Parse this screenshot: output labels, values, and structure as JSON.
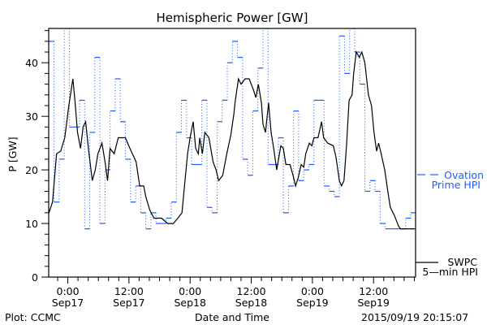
{
  "chart_data": {
    "type": "line",
    "title": "Hemispheric Power [GW]",
    "xlabel": "Date and Time",
    "ylabel": "P [GW]",
    "x_units": "hours since 2015-09-17 0:00",
    "xlim": [
      -3.75,
      68.25
    ],
    "ylim": [
      0,
      46.4
    ],
    "y_ticks": [
      0,
      10,
      20,
      30,
      40
    ],
    "x_ticks": [
      {
        "hour": 0,
        "time": "0:00",
        "date": "Sep17"
      },
      {
        "hour": 12,
        "time": "12:00",
        "date": "Sep17"
      },
      {
        "hour": 24,
        "time": "0:00",
        "date": "Sep18"
      },
      {
        "hour": 36,
        "time": "12:00",
        "date": "Sep18"
      },
      {
        "hour": 48,
        "time": "0:00",
        "date": "Sep19"
      },
      {
        "hour": 60,
        "time": "12:00",
        "date": "Sep19"
      }
    ],
    "colors": {
      "ovation": "#1a5cff",
      "swpc": "#000000"
    },
    "series": [
      {
        "name": "Ovation Prime HPI",
        "legend": [
          "Ovation",
          "Prime HPI"
        ],
        "style": "step",
        "start_hour": -3.7,
        "step_hours": 1,
        "values": [
          44,
          14,
          22,
          47,
          28,
          28,
          33,
          9,
          27,
          41,
          10,
          20,
          31,
          37,
          29,
          22,
          14,
          17,
          12,
          9,
          12,
          10,
          10,
          11,
          14,
          27,
          33,
          26,
          21,
          21,
          33,
          13,
          12,
          29,
          33,
          40,
          44,
          41,
          22,
          19,
          31,
          39,
          47,
          21,
          21,
          26,
          12,
          17,
          31,
          18,
          20,
          21,
          33,
          33,
          17,
          16,
          15,
          45,
          38,
          47,
          42,
          36,
          16,
          18,
          16,
          10,
          9,
          9,
          9,
          9,
          11,
          12
        ]
      },
      {
        "name": "SWPC 5-min HPI",
        "legend": [
          "SWPC",
          "5—min HPI"
        ],
        "style": "line",
        "points": [
          [
            -3.7,
            12
          ],
          [
            -3.0,
            14
          ],
          [
            -2.2,
            23
          ],
          [
            -1.4,
            23.5
          ],
          [
            -0.6,
            26
          ],
          [
            0.2,
            32
          ],
          [
            1.0,
            37
          ],
          [
            1.4,
            33
          ],
          [
            1.9,
            27
          ],
          [
            2.5,
            24
          ],
          [
            3.0,
            28
          ],
          [
            3.5,
            29
          ],
          [
            4.1,
            23.5
          ],
          [
            4.8,
            18
          ],
          [
            5.4,
            20
          ],
          [
            5.9,
            23
          ],
          [
            6.7,
            25
          ],
          [
            7.3,
            21.5
          ],
          [
            7.8,
            18
          ],
          [
            8.3,
            24
          ],
          [
            9.1,
            23
          ],
          [
            9.9,
            26
          ],
          [
            11.3,
            26
          ],
          [
            12.2,
            24
          ],
          [
            13.4,
            21.5
          ],
          [
            14.1,
            17
          ],
          [
            14.9,
            17
          ],
          [
            15.3,
            15
          ],
          [
            16.1,
            12.5
          ],
          [
            16.9,
            11
          ],
          [
            18.4,
            11
          ],
          [
            19.6,
            10
          ],
          [
            20.7,
            10
          ],
          [
            21.6,
            11
          ],
          [
            22.4,
            12
          ],
          [
            22.9,
            17
          ],
          [
            23.5,
            23
          ],
          [
            24.0,
            26
          ],
          [
            24.6,
            29
          ],
          [
            25.1,
            24
          ],
          [
            25.6,
            23
          ],
          [
            25.9,
            26
          ],
          [
            26.4,
            23
          ],
          [
            26.9,
            27
          ],
          [
            27.7,
            26
          ],
          [
            28.5,
            21.5
          ],
          [
            29.1,
            20
          ],
          [
            29.6,
            18
          ],
          [
            30.4,
            19
          ],
          [
            31.2,
            23
          ],
          [
            32.0,
            26.5
          ],
          [
            32.6,
            30.5
          ],
          [
            32.8,
            32.5
          ],
          [
            33.5,
            37
          ],
          [
            34.0,
            36
          ],
          [
            34.8,
            37
          ],
          [
            35.6,
            37
          ],
          [
            36.4,
            35
          ],
          [
            36.9,
            33.5
          ],
          [
            37.4,
            36
          ],
          [
            38.0,
            32.5
          ],
          [
            38.3,
            28.5
          ],
          [
            38.8,
            27
          ],
          [
            39.4,
            32.5
          ],
          [
            39.9,
            27
          ],
          [
            40.4,
            24
          ],
          [
            41.0,
            20
          ],
          [
            41.8,
            24.5
          ],
          [
            42.3,
            24
          ],
          [
            42.8,
            21
          ],
          [
            43.6,
            21
          ],
          [
            44.2,
            19
          ],
          [
            44.7,
            17
          ],
          [
            45.2,
            18.5
          ],
          [
            45.8,
            21
          ],
          [
            46.3,
            20.5
          ],
          [
            46.7,
            23
          ],
          [
            47.4,
            25
          ],
          [
            47.9,
            24.5
          ],
          [
            48.3,
            26
          ],
          [
            49.1,
            26
          ],
          [
            49.8,
            29
          ],
          [
            50.2,
            26
          ],
          [
            51.0,
            25
          ],
          [
            52.1,
            24.5
          ],
          [
            52.6,
            22.5
          ],
          [
            53.3,
            18
          ],
          [
            53.7,
            17
          ],
          [
            54.2,
            18
          ],
          [
            54.7,
            24.5
          ],
          [
            55.2,
            33
          ],
          [
            55.8,
            34
          ],
          [
            56.1,
            38
          ],
          [
            56.6,
            42
          ],
          [
            57.2,
            41
          ],
          [
            57.7,
            42
          ],
          [
            58.3,
            40
          ],
          [
            59.0,
            34
          ],
          [
            59.6,
            32
          ],
          [
            60.1,
            27
          ],
          [
            60.6,
            23.5
          ],
          [
            61.0,
            25
          ],
          [
            61.5,
            23
          ],
          [
            62.2,
            20
          ],
          [
            62.8,
            16
          ],
          [
            63.3,
            13
          ],
          [
            64.1,
            11.5
          ],
          [
            64.9,
            9.5
          ],
          [
            65.3,
            9
          ],
          [
            68.25,
            9
          ]
        ]
      }
    ]
  },
  "footer": {
    "credit": "Plot: CCMC",
    "timestamp": "2015/09/19 20:15:07"
  }
}
